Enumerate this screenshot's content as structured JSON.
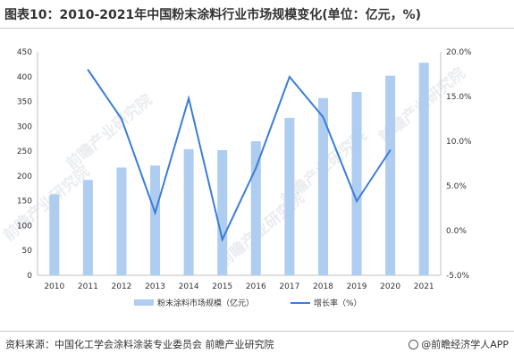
{
  "title": "图表10：2010-2021年中国粉末涂料行业市场规模变化(单位：亿元，%)",
  "source": "资料来源：中国化工学会涂料涂装专业委员会 前瞻产业研究院",
  "brand": "@前瞻经济学人APP",
  "watermark": "前瞻产业研究院",
  "colors": {
    "bar": "#aecdf0",
    "line": "#3b7dd8",
    "axis": "#bfbfbf",
    "text": "#333333"
  },
  "chart_data": {
    "type": "bar",
    "categories": [
      "2010",
      "2011",
      "2012",
      "2013",
      "2014",
      "2015",
      "2016",
      "2017",
      "2018",
      "2019",
      "2020",
      "2021"
    ],
    "series": [
      {
        "name": "粉末涂料市场规模（亿元）",
        "type": "bar",
        "axis": "left",
        "values": [
          163,
          192,
          217,
          221,
          254,
          252,
          270,
          317,
          357,
          369,
          402,
          428
        ]
      },
      {
        "name": "增长率（%）",
        "type": "line",
        "axis": "right",
        "values": [
          null,
          18.0,
          12.5,
          2.0,
          14.8,
          -1.0,
          7.0,
          17.2,
          12.7,
          3.3,
          9.0,
          null
        ]
      }
    ],
    "left_axis": {
      "ylim": [
        0,
        450
      ],
      "ticks": [
        "0",
        "50",
        "100",
        "150",
        "200",
        "250",
        "300",
        "350",
        "400",
        "450"
      ]
    },
    "right_axis": {
      "ylim": [
        -5,
        20
      ],
      "ticks": [
        "-5.0%",
        "0.0%",
        "5.0%",
        "10.0%",
        "15.0%",
        "20.0%"
      ]
    },
    "legend_position": "bottom",
    "grid": false
  }
}
